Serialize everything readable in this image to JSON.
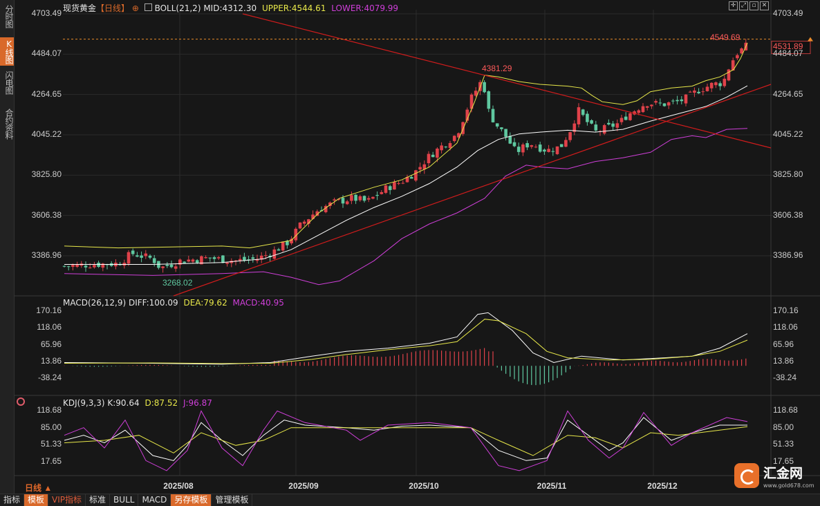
{
  "sidebar": [
    {
      "label": "分时图",
      "active": false
    },
    {
      "label": "K线图",
      "active": true
    },
    {
      "label": "闪电图",
      "active": false
    },
    {
      "label": "合约资料",
      "active": false
    }
  ],
  "header": {
    "symbol": "现货黄金",
    "period": "【日线】",
    "add_icon": "⊕",
    "boll_label": "BOLL(21,2)",
    "mid": "MID:4312.30",
    "upper": "UPPER:4544.61",
    "lower": "LOWER:4079.99"
  },
  "macd_header": {
    "label": "MACD(26,12,9)",
    "diff": "DIFF:100.09",
    "dea": "DEA:79.62",
    "macd": "MACD:40.95"
  },
  "kdj_header": {
    "label": "KDJ(9,3,3)",
    "k": "K:90.64",
    "d": "D:87.52",
    "j": "J:96.87"
  },
  "price_axis": [
    "4703.49",
    "4484.07",
    "4264.65",
    "4045.22",
    "3825.80",
    "3606.38",
    "3386.96"
  ],
  "macd_axis": [
    "170.16",
    "118.06",
    "65.96",
    "13.86",
    "-38.24"
  ],
  "kdj_axis": [
    "118.68",
    "85.00",
    "51.33",
    "17.65"
  ],
  "x_axis": [
    "2025/08",
    "2025/09",
    "2025/10",
    "2025/11",
    "2025/12"
  ],
  "annotations": {
    "high": "4381.29",
    "low": "3268.02",
    "latest_high": "4549.69",
    "current": "4531.89"
  },
  "period_label": "日线",
  "bottom_tabs": [
    "指标",
    "模板",
    "VIP指标",
    "标准",
    "BULL",
    "MACD",
    "另存模板",
    "管理模板"
  ],
  "logo": {
    "name": "汇金网",
    "url": "www.gold678.com"
  },
  "colors": {
    "up": "#e0424a",
    "down": "#5fc8a0",
    "upper": "#e8e84a",
    "mid": "#ffffff",
    "lower": "#cf3fd9",
    "accent": "#d9692a"
  }
}
